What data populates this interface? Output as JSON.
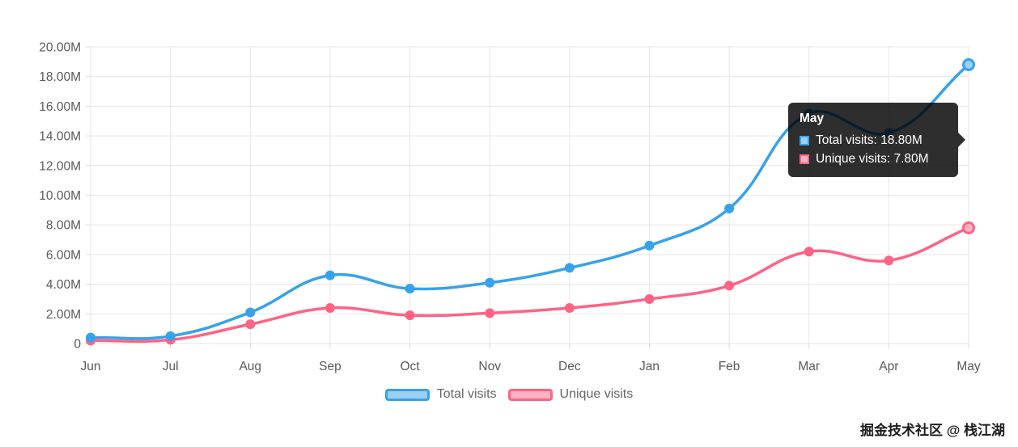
{
  "chart_data": {
    "type": "line",
    "categories": [
      "Jun",
      "Jul",
      "Aug",
      "Sep",
      "Oct",
      "Nov",
      "Dec",
      "Jan",
      "Feb",
      "Mar",
      "Apr",
      "May"
    ],
    "series": [
      {
        "name": "Total visits",
        "color": "#36A2EB",
        "fill": "#9BD0F5",
        "values": [
          0.4,
          0.5,
          2.1,
          4.6,
          3.7,
          4.1,
          5.1,
          6.6,
          9.1,
          15.5,
          14.2,
          18.8
        ]
      },
      {
        "name": "Unique visits",
        "color": "#FF6384",
        "fill": "#FFB1C1",
        "values": [
          0.2,
          0.25,
          1.3,
          2.4,
          1.9,
          2.05,
          2.4,
          3.0,
          3.9,
          6.2,
          5.6,
          7.8
        ]
      }
    ],
    "ylim": [
      0,
      20
    ],
    "y_ticks": [
      "20.00M",
      "18.00M",
      "16.00M",
      "14.00M",
      "12.00M",
      "10.00M",
      "8.00M",
      "6.00M",
      "4.00M",
      "2.00M",
      "0"
    ],
    "grid": true,
    "legend_position": "bottom",
    "highlighted_category": "May"
  },
  "tooltip": {
    "title": "May",
    "rows": [
      {
        "label": "Total visits: 18.80M",
        "color": "#36A2EB",
        "fill": "#9BD0F5"
      },
      {
        "label": "Unique visits: 7.80M",
        "color": "#FF6384",
        "fill": "#FFB1C1"
      }
    ]
  },
  "legend": {
    "items": [
      {
        "label": "Total visits"
      },
      {
        "label": "Unique visits"
      }
    ]
  },
  "watermark": "掘金技术社区 @ 栈江湖"
}
